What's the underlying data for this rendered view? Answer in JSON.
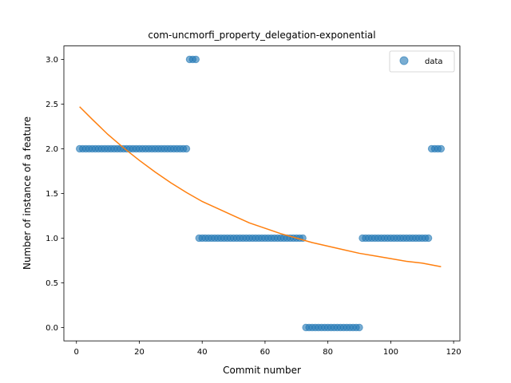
{
  "chart_data": {
    "type": "scatter",
    "title": "com-uncmorfi_property_delegation-exponential",
    "xlabel": "Commit number",
    "ylabel": "Number of instance of a feature",
    "xlim": [
      -4,
      122
    ],
    "ylim": [
      -0.15,
      3.15
    ],
    "xticks": [
      0,
      20,
      40,
      60,
      80,
      100,
      120
    ],
    "yticks": [
      0.0,
      0.5,
      1.0,
      1.5,
      2.0,
      2.5,
      3.0
    ],
    "xtick_labels": [
      "0",
      "20",
      "40",
      "60",
      "80",
      "100",
      "120"
    ],
    "ytick_labels": [
      "0.0",
      "0.5",
      "1.0",
      "1.5",
      "2.0",
      "2.5",
      "3.0"
    ],
    "grid": false,
    "legend": {
      "position": "top-right",
      "entries": [
        "data"
      ]
    },
    "colors": {
      "data": "#1f77b4",
      "fit": "#ff7f0e"
    },
    "series": [
      {
        "name": "data",
        "kind": "scatter",
        "x": [
          1,
          2,
          3,
          4,
          5,
          6,
          7,
          8,
          9,
          10,
          11,
          12,
          13,
          14,
          15,
          16,
          17,
          18,
          19,
          20,
          21,
          22,
          23,
          24,
          25,
          26,
          27,
          28,
          29,
          30,
          31,
          32,
          33,
          34,
          35,
          36,
          37,
          38,
          39,
          40,
          41,
          42,
          43,
          44,
          45,
          46,
          47,
          48,
          49,
          50,
          51,
          52,
          53,
          54,
          55,
          56,
          57,
          58,
          59,
          60,
          61,
          62,
          63,
          64,
          65,
          66,
          67,
          68,
          69,
          70,
          71,
          72,
          73,
          74,
          75,
          76,
          77,
          78,
          79,
          80,
          81,
          82,
          83,
          84,
          85,
          86,
          87,
          88,
          89,
          90,
          91,
          92,
          93,
          94,
          95,
          96,
          97,
          98,
          99,
          100,
          101,
          102,
          103,
          104,
          105,
          106,
          107,
          108,
          109,
          110,
          111,
          112,
          113,
          114,
          115,
          116
        ],
        "y": [
          2,
          2,
          2,
          2,
          2,
          2,
          2,
          2,
          2,
          2,
          2,
          2,
          2,
          2,
          2,
          2,
          2,
          2,
          2,
          2,
          2,
          2,
          2,
          2,
          2,
          2,
          2,
          2,
          2,
          2,
          2,
          2,
          2,
          2,
          2,
          3,
          3,
          3,
          1,
          1,
          1,
          1,
          1,
          1,
          1,
          1,
          1,
          1,
          1,
          1,
          1,
          1,
          1,
          1,
          1,
          1,
          1,
          1,
          1,
          1,
          1,
          1,
          1,
          1,
          1,
          1,
          1,
          1,
          1,
          1,
          1,
          1,
          0,
          0,
          0,
          0,
          0,
          0,
          0,
          0,
          0,
          0,
          0,
          0,
          0,
          0,
          0,
          0,
          0,
          0,
          1,
          1,
          1,
          1,
          1,
          1,
          1,
          1,
          1,
          1,
          1,
          1,
          1,
          1,
          1,
          1,
          1,
          1,
          1,
          1,
          1,
          1,
          2,
          2,
          2,
          2
        ]
      },
      {
        "kind": "line",
        "x": [
          1,
          5,
          10,
          15,
          20,
          25,
          30,
          35,
          40,
          45,
          50,
          55,
          60,
          65,
          70,
          75,
          80,
          85,
          90,
          95,
          100,
          105,
          110,
          116
        ],
        "y": [
          2.47,
          2.33,
          2.16,
          2.01,
          1.87,
          1.74,
          1.62,
          1.51,
          1.41,
          1.33,
          1.25,
          1.17,
          1.11,
          1.05,
          1.0,
          0.95,
          0.91,
          0.87,
          0.83,
          0.8,
          0.77,
          0.74,
          0.72,
          0.68
        ]
      }
    ]
  }
}
